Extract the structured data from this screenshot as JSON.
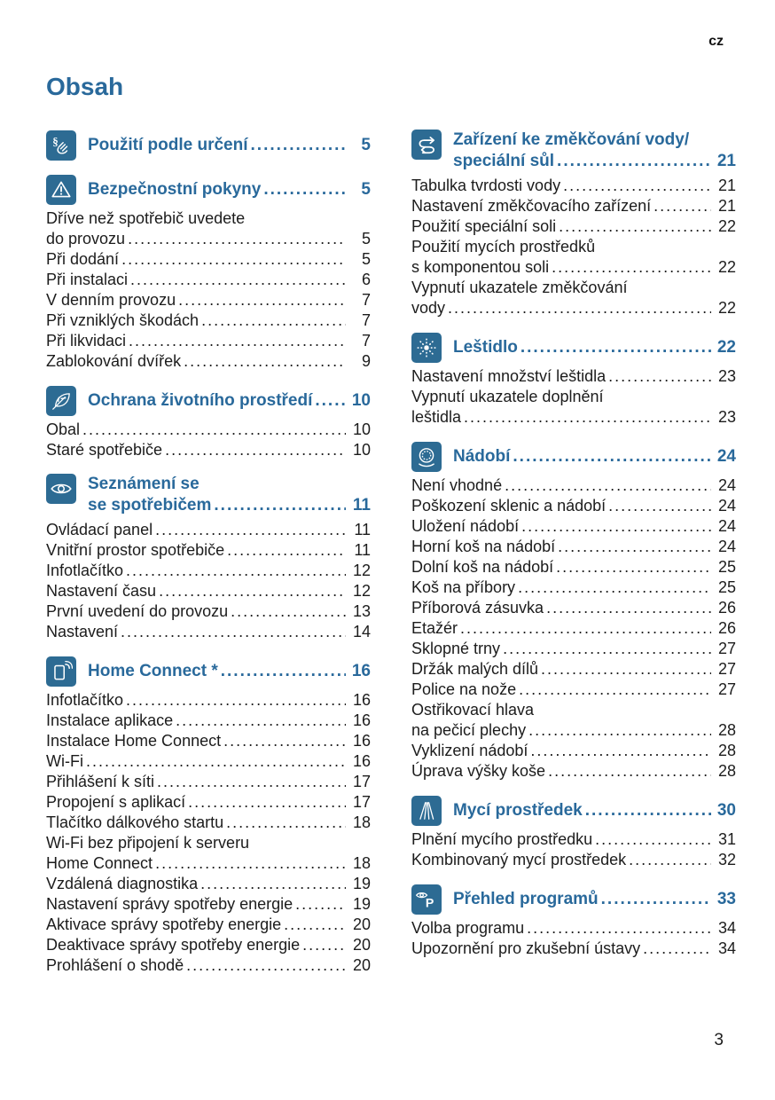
{
  "page": {
    "lang_code": "cz",
    "title": "Obsah",
    "page_number": "3"
  },
  "colors": {
    "accent": "#29699b",
    "icon_bg": "#2d6b93",
    "text": "#1c1c1c"
  },
  "columns": [
    {
      "sections": [
        {
          "icon": "paragraph-hand-icon",
          "title_lines": [
            "Použití podle určení"
          ],
          "page": "5",
          "entries": []
        },
        {
          "icon": "warning-triangle-icon",
          "title_lines": [
            "Bezpečnostní pokyny"
          ],
          "page": "5",
          "entries": [
            {
              "lines": [
                "Dříve než spotřebič uvedete",
                "do provozu"
              ],
              "page": "5"
            },
            {
              "lines": [
                "Při dodání"
              ],
              "page": "5"
            },
            {
              "lines": [
                "Při instalaci"
              ],
              "page": "6"
            },
            {
              "lines": [
                "V denním provozu"
              ],
              "page": "7"
            },
            {
              "lines": [
                "Při vzniklých škodách"
              ],
              "page": "7"
            },
            {
              "lines": [
                "Při likvidaci"
              ],
              "page": "7"
            },
            {
              "lines": [
                "Zablokování dvířek"
              ],
              "page": "9"
            }
          ]
        },
        {
          "icon": "leaf-icon",
          "title_lines": [
            "Ochrana životního prostředí"
          ],
          "page": "10",
          "entries": [
            {
              "lines": [
                "Obal"
              ],
              "page": "10"
            },
            {
              "lines": [
                "Staré spotřebiče"
              ],
              "page": "10"
            }
          ]
        },
        {
          "icon": "eye-icon",
          "title_lines": [
            "Seznámení se",
            "se spotřebičem"
          ],
          "page": "11",
          "entries": [
            {
              "lines": [
                "Ovládací panel"
              ],
              "page": "11"
            },
            {
              "lines": [
                "Vnitřní prostor spotřebiče"
              ],
              "page": "11"
            },
            {
              "lines": [
                "Infotlačítko"
              ],
              "page": "12"
            },
            {
              "lines": [
                "Nastavení času"
              ],
              "page": "12"
            },
            {
              "lines": [
                "První uvedení do provozu"
              ],
              "page": "13"
            },
            {
              "lines": [
                "Nastavení"
              ],
              "page": "14"
            }
          ]
        },
        {
          "icon": "phone-wifi-icon",
          "title_lines": [
            "Home Connect *"
          ],
          "page": "16",
          "entries": [
            {
              "lines": [
                "Infotlačítko"
              ],
              "page": "16"
            },
            {
              "lines": [
                "Instalace aplikace"
              ],
              "page": "16"
            },
            {
              "lines": [
                "Instalace Home Connect"
              ],
              "page": "16"
            },
            {
              "lines": [
                "Wi-Fi"
              ],
              "page": "16"
            },
            {
              "lines": [
                "Přihlášení k síti"
              ],
              "page": "17"
            },
            {
              "lines": [
                "Propojení s aplikací"
              ],
              "page": "17"
            },
            {
              "lines": [
                "Tlačítko dálkového startu"
              ],
              "page": "18"
            },
            {
              "lines": [
                "Wi-Fi bez připojení k serveru",
                "Home Connect"
              ],
              "page": "18"
            },
            {
              "lines": [
                "Vzdálená diagnostika"
              ],
              "page": "19"
            },
            {
              "lines": [
                "Nastavení správy spotřeby energie"
              ],
              "page": "19"
            },
            {
              "lines": [
                "Aktivace správy spotřeby energie"
              ],
              "page": "20"
            },
            {
              "lines": [
                "Deaktivace správy spotřeby energie"
              ],
              "page": "20"
            },
            {
              "lines": [
                "Prohlášení o shodě"
              ],
              "page": "20"
            }
          ]
        }
      ]
    },
    {
      "sections": [
        {
          "icon": "s-arrows-icon",
          "title_lines": [
            "Zařízení ke změkčování vody/",
            "speciální sůl"
          ],
          "page": "21",
          "entries": [
            {
              "lines": [
                "Tabulka tvrdosti vody"
              ],
              "page": "21"
            },
            {
              "lines": [
                "Nastavení změkčovacího zařízení"
              ],
              "page": "21"
            },
            {
              "lines": [
                "Použití speciální soli"
              ],
              "page": "22"
            },
            {
              "lines": [
                "Použití mycích prostředků",
                "s komponentou soli"
              ],
              "page": "22"
            },
            {
              "lines": [
                "Vypnutí ukazatele změkčování",
                "vody"
              ],
              "page": "22"
            }
          ]
        },
        {
          "icon": "sparkle-icon",
          "title_lines": [
            "Leštidlo"
          ],
          "page": "22",
          "entries": [
            {
              "lines": [
                "Nastavení množství leštidla"
              ],
              "page": "23"
            },
            {
              "lines": [
                "Vypnutí ukazatele doplnění",
                "leštidla"
              ],
              "page": "23"
            }
          ]
        },
        {
          "icon": "plate-icon",
          "title_lines": [
            "Nádobí"
          ],
          "page": "24",
          "entries": [
            {
              "lines": [
                "Není vhodné"
              ],
              "page": "24"
            },
            {
              "lines": [
                "Poškození sklenic a nádobí"
              ],
              "page": "24"
            },
            {
              "lines": [
                "Uložení nádobí"
              ],
              "page": "24"
            },
            {
              "lines": [
                "Horní koš na nádobí"
              ],
              "page": "24"
            },
            {
              "lines": [
                "Dolní koš na nádobí"
              ],
              "page": "25"
            },
            {
              "lines": [
                "Koš na příbory"
              ],
              "page": "25"
            },
            {
              "lines": [
                "Příborová zásuvka"
              ],
              "page": "26"
            },
            {
              "lines": [
                "Etažér"
              ],
              "page": "26"
            },
            {
              "lines": [
                "Sklopné trny"
              ],
              "page": "27"
            },
            {
              "lines": [
                "Držák malých dílů"
              ],
              "page": "27"
            },
            {
              "lines": [
                "Police na nože"
              ],
              "page": "27"
            },
            {
              "lines": [
                "Ostřikovací hlava",
                "na pečicí plechy"
              ],
              "page": "28"
            },
            {
              "lines": [
                "Vyklizení nádobí"
              ],
              "page": "28"
            },
            {
              "lines": [
                "Úprava výšky koše"
              ],
              "page": "28"
            }
          ]
        },
        {
          "icon": "spray-icon",
          "title_lines": [
            "Mycí prostředek"
          ],
          "page": "30",
          "entries": [
            {
              "lines": [
                "Plnění mycího prostředku"
              ],
              "page": "31"
            },
            {
              "lines": [
                "Kombinovaný mycí prostředek"
              ],
              "page": "32"
            }
          ]
        },
        {
          "icon": "eye-p-icon",
          "title_lines": [
            "Přehled programů"
          ],
          "page": "33",
          "entries": [
            {
              "lines": [
                "Volba programu"
              ],
              "page": "34"
            },
            {
              "lines": [
                "Upozornění pro zkušební ústavy"
              ],
              "page": "34"
            }
          ]
        }
      ]
    }
  ]
}
